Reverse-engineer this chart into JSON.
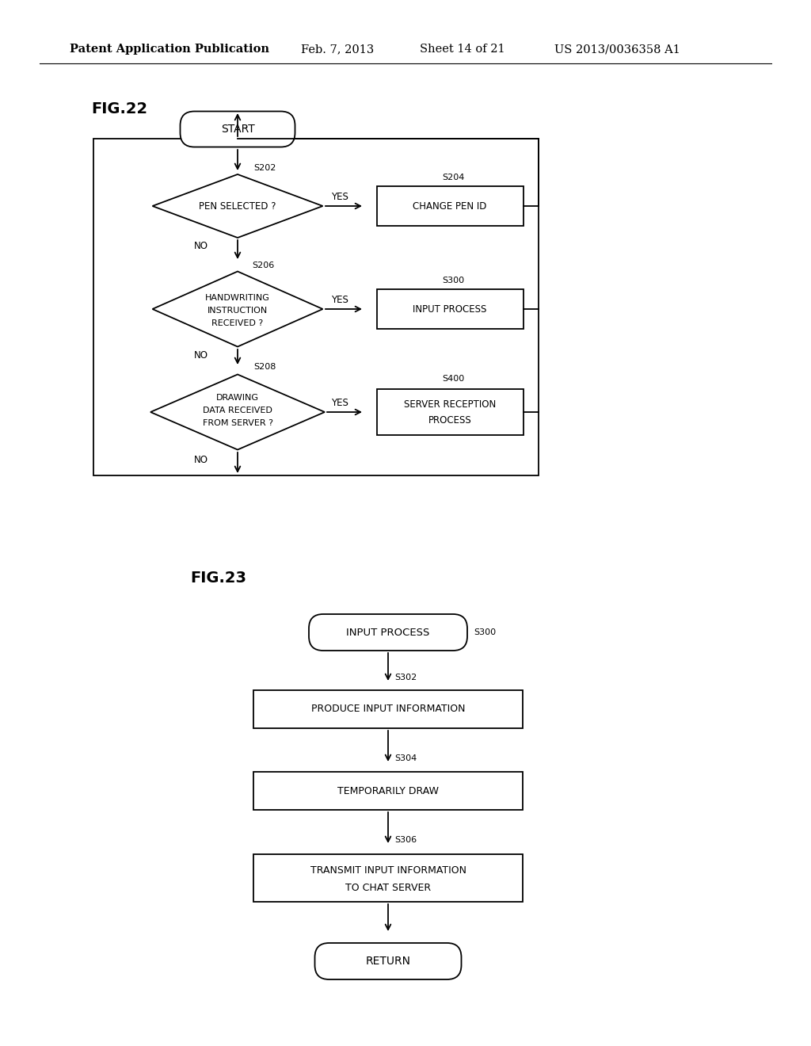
{
  "bg_color": "#ffffff",
  "text_color": "#000000",
  "line_color": "#000000",
  "header_text": "Patent Application Publication",
  "header_date": "Feb. 7, 2013",
  "header_sheet": "Sheet 14 of 21",
  "header_patent": "US 2013/0036358 A1",
  "fig22_label": "FIG.22",
  "fig23_label": "FIG.23"
}
